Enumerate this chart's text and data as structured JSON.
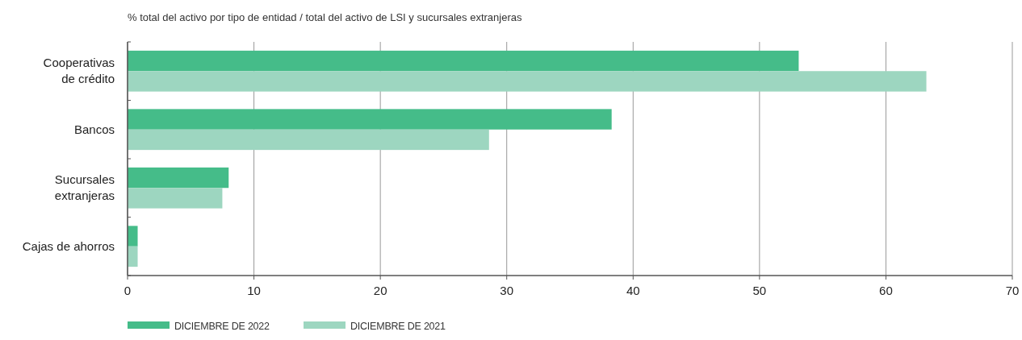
{
  "chart_data": {
    "type": "bar",
    "orientation": "horizontal",
    "title": "% total del activo por tipo de entidad / total del activo de LSI y sucursales extranjeras",
    "categories": [
      "Cooperativas\nde crédito",
      "Bancos",
      "Sucursales\nextranjeras",
      "Cajas de ahorros"
    ],
    "series": [
      {
        "name": "DICIEMBRE DE 2022",
        "color": "#45bc89",
        "values": [
          53.1,
          38.3,
          8.0,
          0.8
        ]
      },
      {
        "name": "DICIEMBRE DE 2021",
        "color": "#9dd6c0",
        "values": [
          63.2,
          28.6,
          7.5,
          0.8
        ]
      }
    ],
    "xlim": [
      0,
      70
    ],
    "xticks": [
      0,
      10,
      20,
      30,
      40,
      50,
      60,
      70
    ],
    "grid": "x",
    "legend": "bottom"
  }
}
